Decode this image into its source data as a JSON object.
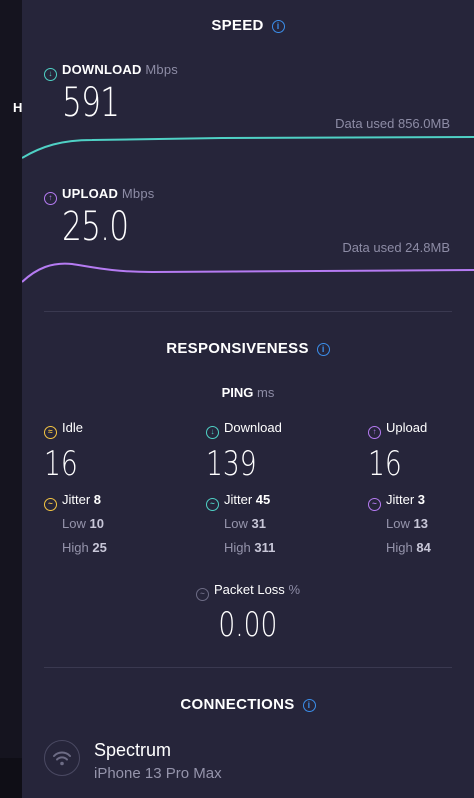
{
  "left_strip": {
    "letter": "H"
  },
  "speed": {
    "title": "SPEED",
    "download": {
      "label": "DOWNLOAD",
      "unit": "Mbps",
      "value": "591",
      "data_used": "Data used 856.0MB",
      "color": "#4fd1c5"
    },
    "upload": {
      "label": "UPLOAD",
      "unit": "Mbps",
      "value": "25.0",
      "data_used": "Data used 24.8MB",
      "color": "#b57bf2"
    }
  },
  "responsiveness": {
    "title": "RESPONSIVENESS",
    "ping_label": "PING",
    "ping_unit": "ms",
    "idle": {
      "label": "Idle",
      "value": "16",
      "jitter_label": "Jitter",
      "jitter": "8",
      "low_label": "Low",
      "low": "10",
      "high_label": "High",
      "high": "25",
      "color": "#f4c542"
    },
    "download": {
      "label": "Download",
      "value": "139",
      "jitter_label": "Jitter",
      "jitter": "45",
      "low_label": "Low",
      "low": "31",
      "high_label": "High",
      "high": "311",
      "color": "#4fd1c5"
    },
    "upload": {
      "label": "Upload",
      "value": "16",
      "jitter_label": "Jitter",
      "jitter": "3",
      "low_label": "Low",
      "low": "13",
      "high_label": "High",
      "high": "84",
      "color": "#b57bf2"
    },
    "packet_loss": {
      "label": "Packet Loss",
      "unit": "%",
      "value": "0.00"
    }
  },
  "connections": {
    "title": "CONNECTIONS",
    "name": "Spectrum",
    "device": "iPhone 13 Pro Max"
  }
}
